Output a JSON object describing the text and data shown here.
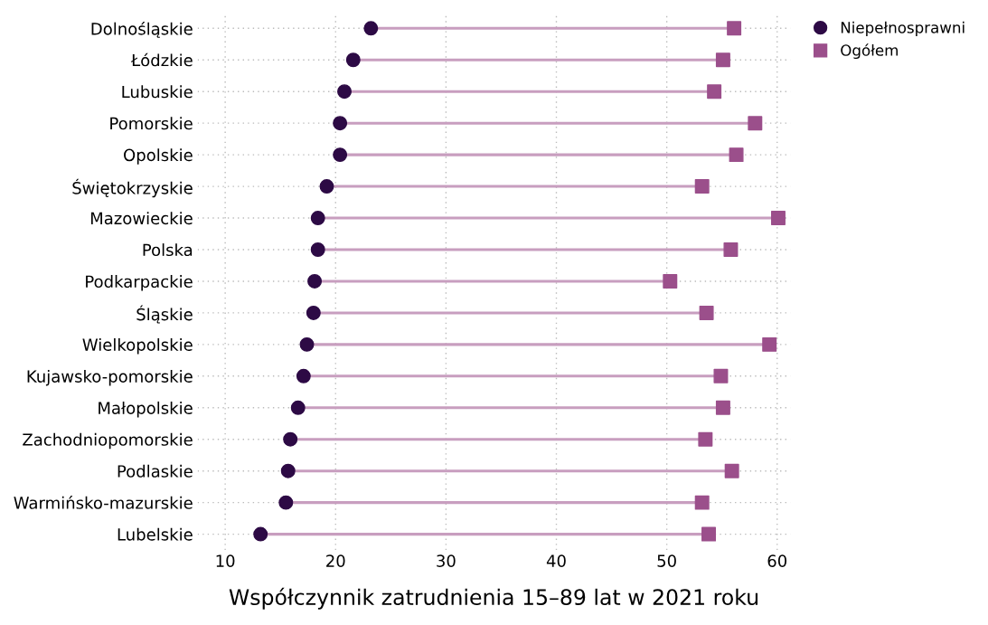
{
  "chart_data": {
    "type": "scatter",
    "orientation": "horizontal",
    "xlabel": "Współczynnik zatrudnienia 15–89 lat w 2021 roku",
    "categories": [
      "Dolnośląskie",
      "Łódzkie",
      "Lubuskie",
      "Pomorskie",
      "Opolskie",
      "Świętokrzyskie",
      "Mazowieckie",
      "Polska",
      "Podkarpackie",
      "Śląskie",
      "Wielkopolskie",
      "Kujawsko-pomorskie",
      "Małopolskie",
      "Zachodniopomorskie",
      "Podlaskie",
      "Warmińsko-mazurskie",
      "Lubelskie"
    ],
    "series": [
      {
        "name": "Niepełnosprawni",
        "color": "#2d0a45",
        "marker": "circle",
        "values": [
          23.2,
          21.6,
          20.8,
          20.4,
          20.4,
          19.2,
          18.4,
          18.4,
          18.1,
          18.0,
          17.4,
          17.1,
          16.6,
          15.9,
          15.7,
          15.5,
          13.2
        ]
      },
      {
        "name": "Ogółem",
        "color": "#9b4f8b",
        "marker": "square",
        "values": [
          56.1,
          55.1,
          54.3,
          58.0,
          56.3,
          53.2,
          60.1,
          55.8,
          50.3,
          53.6,
          59.3,
          54.9,
          55.1,
          53.5,
          55.9,
          53.2,
          53.8
        ]
      }
    ],
    "xlim": [
      7.5,
      61.2
    ],
    "xticks": [
      10,
      20,
      30,
      40,
      50,
      60
    ],
    "grid": true,
    "legend": "top right"
  }
}
